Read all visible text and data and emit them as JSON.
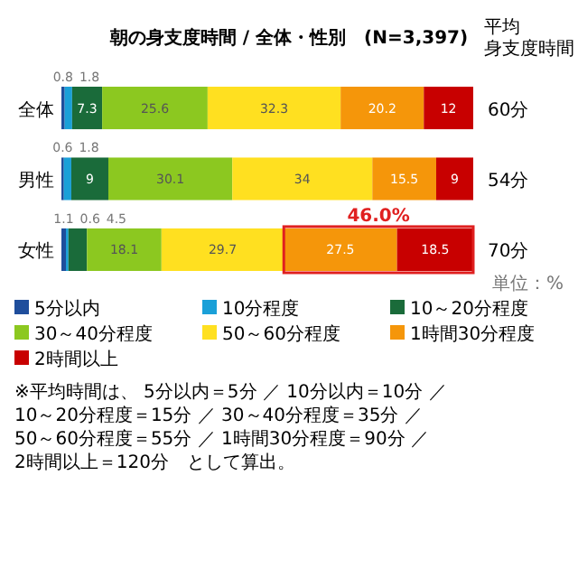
{
  "chart_data": {
    "type": "bar",
    "orientation": "horizontal",
    "stacked": true,
    "title": "朝の身支度時間 / 全体・性別　(N=3,397)",
    "y2label": "平均身支度時間",
    "categories": [
      "全体",
      "男性",
      "女性"
    ],
    "xlim": [
      0,
      100
    ],
    "tick_labels": "y",
    "legend": "bottom",
    "data_labels": true,
    "series": [
      {
        "name": "5分以内",
        "color": "#1f4e9c",
        "values": [
          0.8,
          0.6,
          1.1
        ]
      },
      {
        "name": "10分程度",
        "color": "#1aa0d8",
        "values": [
          1.8,
          1.8,
          0.6
        ]
      },
      {
        "name": "10～20分程度",
        "color": "#1a6b3a",
        "values": [
          7.3,
          9.0,
          4.5
        ]
      },
      {
        "name": "30～40分程度",
        "color": "#8cc820",
        "values": [
          25.6,
          30.1,
          18.1
        ]
      },
      {
        "name": "50～60分程度",
        "color": "#ffe020",
        "values": [
          32.3,
          34.0,
          29.7
        ]
      },
      {
        "name": "1時間30分程度",
        "color": "#f5960a",
        "values": [
          20.2,
          15.5,
          27.5
        ]
      },
      {
        "name": "2時間以上",
        "color": "#c80000",
        "values": [
          12.0,
          9.0,
          18.5
        ]
      }
    ],
    "annotations": [
      "単位：%",
      "※平均時間は、 5分以内＝5分 ／ 10分以内＝10分 ／ 10～20分程度＝15分 ／ 30～40分程度＝35分 ／ 50～60分程度＝55分 ／ 1時間30分程度＝90分 ／ 2時間以上＝120分　として算出。",
      "60分",
      "54分",
      "70分",
      "46.0%"
    ]
  }
}
